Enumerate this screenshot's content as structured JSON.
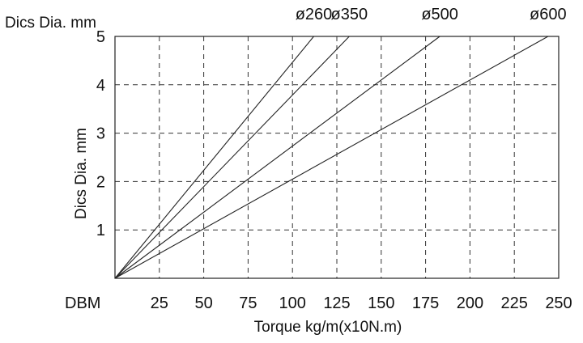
{
  "chart_data": {
    "type": "line",
    "title": "",
    "corner_label": "Dics Dia. mm",
    "ylabel": "Dics Dia. mm",
    "xlabel": "Torque kg/m(x10N.m)",
    "origin_label": "DBM",
    "xlim": [
      0,
      250
    ],
    "ylim": [
      0,
      5
    ],
    "x_ticks": [
      25,
      50,
      75,
      100,
      125,
      150,
      175,
      200,
      225,
      250
    ],
    "x_tick_labels": [
      "25",
      "50",
      "75",
      "100",
      "125",
      "150",
      "175",
      "200",
      "225",
      "250"
    ],
    "y_ticks": [
      1,
      2,
      3,
      4,
      5
    ],
    "y_tick_labels": [
      "1",
      "2",
      "3",
      "4",
      "5"
    ],
    "grid": true,
    "grid_style": "dashed",
    "legend": "none",
    "series": [
      {
        "name": "ø260",
        "x": [
          0,
          112
        ],
        "y": [
          0,
          5
        ]
      },
      {
        "name": "ø350",
        "x": [
          0,
          132
        ],
        "y": [
          0,
          5
        ]
      },
      {
        "name": "ø500",
        "x": [
          0,
          183
        ],
        "y": [
          0,
          5
        ]
      },
      {
        "name": "ø600",
        "x": [
          0,
          244
        ],
        "y": [
          0,
          5
        ]
      }
    ]
  }
}
